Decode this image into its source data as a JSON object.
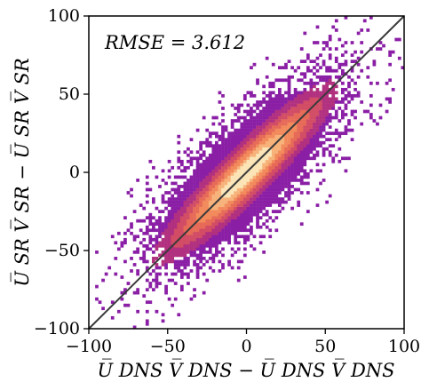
{
  "chart_data": {
    "type": "heatmap",
    "subtype": "2d-histogram",
    "xlabel": "U̅ DNS V̅ DNS − U̅ DNS V̅ DNS",
    "ylabel": "U̅ SR V̅ SR − U̅ SR V̅ SR",
    "xlim": [
      -100,
      100
    ],
    "ylim": [
      -100,
      100
    ],
    "xticks": [
      "−100",
      "−50",
      "0",
      "50",
      "100"
    ],
    "yticks": [
      "−100",
      "−50",
      "0",
      "50",
      "100"
    ],
    "annotation": "RMSE = 3.612",
    "reference_line": {
      "from": [
        -100,
        -100
      ],
      "to": [
        100,
        100
      ],
      "color": "#3a3a3a"
    },
    "colormap": [
      "#8a1ea5",
      "#b1307f",
      "#d14c64",
      "#e66a57",
      "#f28a5c",
      "#f7b27a",
      "#fbe4b6"
    ],
    "distribution": {
      "center": [
        0,
        0
      ],
      "major_axis_std": 35,
      "minor_axis_std": 7,
      "orientation_deg": 45,
      "visible_x_range": [
        -93,
        96
      ],
      "visible_y_range": [
        -98,
        97
      ]
    },
    "grid": false,
    "legend": "none"
  }
}
